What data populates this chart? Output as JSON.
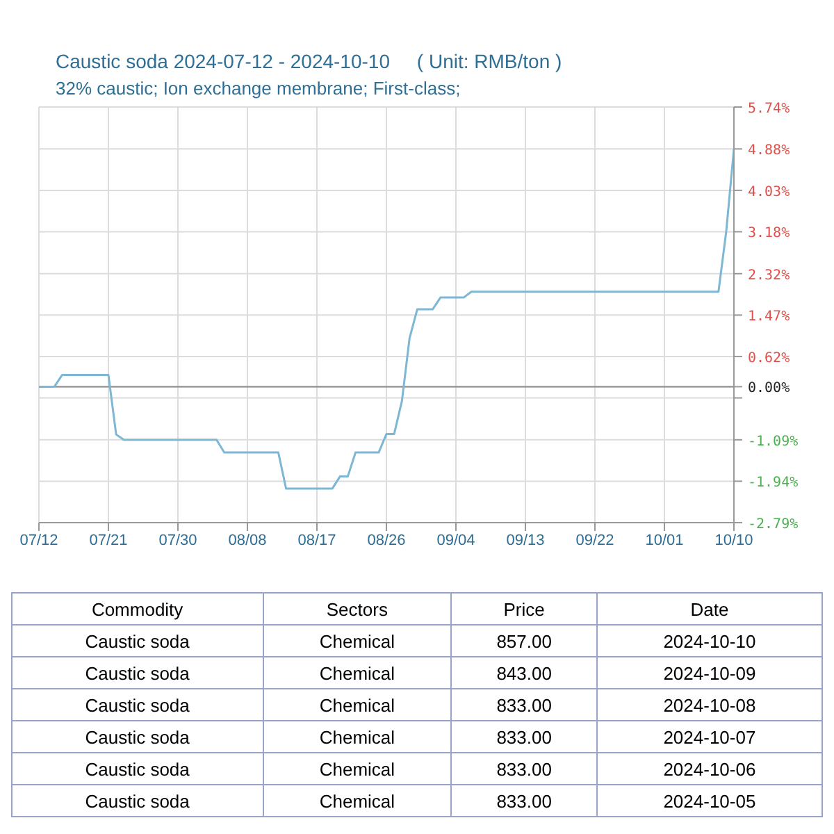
{
  "chart_data": {
    "type": "line",
    "title": "Caustic soda 2024-07-12 - 2024-10-10     ( Unit: RMB/ton )",
    "subtitle": "32% caustic; Ion exchange membrane; First-class;",
    "x": [
      "2024-07-12",
      "2024-07-14",
      "2024-07-15",
      "2024-07-21",
      "2024-07-22",
      "2024-07-23",
      "2024-08-04",
      "2024-08-05",
      "2024-08-12",
      "2024-08-13",
      "2024-08-19",
      "2024-08-20",
      "2024-08-21",
      "2024-08-22",
      "2024-08-25",
      "2024-08-26",
      "2024-08-27",
      "2024-08-28",
      "2024-08-29",
      "2024-08-30",
      "2024-09-01",
      "2024-09-02",
      "2024-09-05",
      "2024-09-06",
      "2024-10-08",
      "2024-10-09",
      "2024-10-10"
    ],
    "series": [
      {
        "color": "#7db7d3",
        "values": [
          0,
          0,
          0.24,
          0.24,
          -0.98,
          -1.09,
          -1.09,
          -1.35,
          -1.35,
          -2.09,
          -2.09,
          -1.84,
          -1.84,
          -1.35,
          -1.35,
          -0.97,
          -0.97,
          -0.3,
          1.0,
          1.59,
          1.59,
          1.83,
          1.83,
          1.95,
          1.95,
          3.18,
          4.88
        ]
      }
    ],
    "xlim": [
      "2024-07-12",
      "2024-10-10"
    ],
    "xticks": [
      {
        "value": "2024-07-12",
        "label": "07/12"
      },
      {
        "value": "2024-07-21",
        "label": "07/21"
      },
      {
        "value": "2024-07-30",
        "label": "07/30"
      },
      {
        "value": "2024-08-08",
        "label": "08/08"
      },
      {
        "value": "2024-08-17",
        "label": "08/17"
      },
      {
        "value": "2024-08-26",
        "label": "08/26"
      },
      {
        "value": "2024-09-04",
        "label": "09/04"
      },
      {
        "value": "2024-09-13",
        "label": "09/13"
      },
      {
        "value": "2024-09-22",
        "label": "09/22"
      },
      {
        "value": "2024-10-01",
        "label": "10/01"
      },
      {
        "value": "2024-10-10",
        "label": "10/10"
      }
    ],
    "ylim": [
      -2.79,
      5.74
    ],
    "yticks": [
      {
        "value": 5.74,
        "label": "5.74%"
      },
      {
        "value": 4.88,
        "label": "4.88%"
      },
      {
        "value": 4.03,
        "label": "4.03%"
      },
      {
        "value": 3.18,
        "label": "3.18%"
      },
      {
        "value": 2.32,
        "label": "2.32%"
      },
      {
        "value": 1.47,
        "label": "1.47%"
      },
      {
        "value": 0.62,
        "label": "0.62%"
      },
      {
        "value": 0,
        "label": "0.00%"
      },
      {
        "value": -0.23,
        "label": null
      },
      {
        "value": -1.09,
        "label": "-1.09%"
      },
      {
        "value": -1.94,
        "label": "-1.94%"
      },
      {
        "value": -2.79,
        "label": "-2.79%"
      }
    ],
    "ref_lines": [
      {
        "axis": "y",
        "value": 0,
        "color": "#8c8c8c"
      }
    ],
    "grid": true,
    "marker": "none",
    "line_style": "solid",
    "annotations": [
      "Commodity",
      "Sectors",
      "Price",
      "Date",
      "Caustic soda",
      "Chemical",
      "857.00",
      "2024-10-10",
      "Caustic soda",
      "Chemical",
      "843.00",
      "2024-10-09",
      "Caustic soda",
      "Chemical",
      "833.00",
      "2024-10-08",
      "Caustic soda",
      "Chemical",
      "833.00",
      "2024-10-07",
      "Caustic soda",
      "Chemical",
      "833.00",
      "2024-10-06",
      "Caustic soda",
      "Chemical",
      "833.00",
      "2024-10-05"
    ]
  }
}
